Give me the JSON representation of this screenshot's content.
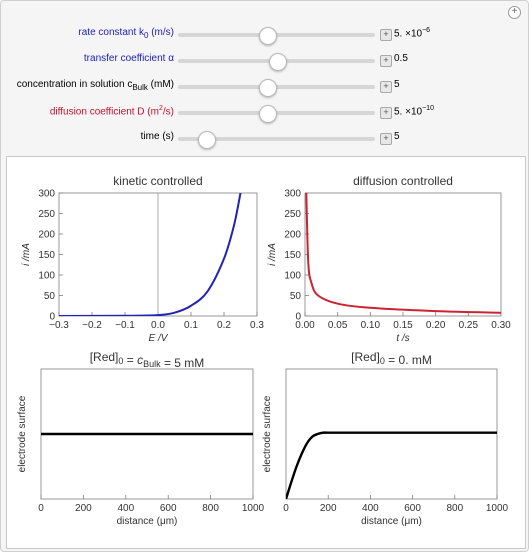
{
  "controls": [
    {
      "id": "rate-constant",
      "label_main": "rate constant k",
      "label_sub": "0",
      "label_tail": " (m/s)",
      "color": "blue",
      "value_base": "5. ×10",
      "value_exp": "−6",
      "thumb": 0.45
    },
    {
      "id": "transfer-coefficient",
      "label_main": "transfer coefficient α",
      "label_sub": "",
      "label_tail": "",
      "color": "blue",
      "value_base": "0.5",
      "value_exp": "",
      "thumb": 0.5
    },
    {
      "id": "concentration",
      "label_main": "concentration in solution c",
      "label_sub": "Bulk",
      "label_tail": " (mM)",
      "color": "black",
      "value_base": "5",
      "value_exp": "",
      "thumb": 0.45
    },
    {
      "id": "diffusion-coefficient",
      "label_main": "diffusion coefficient D (m",
      "label_sup": "2",
      "label_tail": "/s)",
      "color": "red",
      "value_base": "5. ×10",
      "value_exp": "−10",
      "thumb": 0.45
    },
    {
      "id": "time",
      "label_main": "time (s)",
      "label_sub": "",
      "label_tail": "",
      "color": "black",
      "value_base": "5",
      "value_exp": "",
      "thumb": 0.14
    }
  ],
  "colors": {
    "kinetic": "#2222bb",
    "diffusion": "#cc2233",
    "profile": "#000000",
    "axis": "#7f7f7f"
  },
  "chart_data": [
    {
      "type": "line",
      "title": "kinetic controlled",
      "xlabel": "E /V",
      "ylabel": "i /mA",
      "xlim": [
        -0.3,
        0.3
      ],
      "ylim": [
        0,
        300
      ],
      "xticks": [
        "−0.3",
        "−0.2",
        "−0.1",
        "0.0",
        "0.1",
        "0.2",
        "0.3"
      ],
      "yticks": [
        "0",
        "50",
        "100",
        "150",
        "200",
        "250",
        "300"
      ],
      "series": [
        {
          "x": [
            -0.3,
            -0.1,
            0.0,
            0.05,
            0.1,
            0.15,
            0.2,
            0.23,
            0.25
          ],
          "y": [
            0,
            0.5,
            2,
            8,
            25,
            60,
            140,
            220,
            300
          ]
        }
      ]
    },
    {
      "type": "line",
      "title": "diffusion controlled",
      "xlabel": "t /s",
      "ylabel": "i /mA",
      "xlim": [
        0,
        0.3
      ],
      "ylim": [
        0,
        300
      ],
      "xticks": [
        "0.00",
        "0.05",
        "0.10",
        "0.15",
        "0.20",
        "0.25",
        "0.30"
      ],
      "yticks": [
        "0",
        "50",
        "100",
        "150",
        "200",
        "250",
        "300"
      ],
      "series": [
        {
          "x": [
            0.002,
            0.005,
            0.01,
            0.02,
            0.05,
            0.1,
            0.2,
            0.3
          ],
          "y": [
            300,
            130,
            80,
            50,
            30,
            20,
            12,
            8
          ]
        }
      ]
    },
    {
      "type": "line",
      "title_pre": "[Red]",
      "title_sub0": "0",
      "title_mid": " = ",
      "title_c": "c",
      "title_sub1": "Bulk",
      "title_post": " = 5 mM",
      "xlabel": "distance (μm)",
      "ylabel": "electrode surface",
      "xlim": [
        0,
        1000
      ],
      "ylim": [
        0,
        1
      ],
      "xticks": [
        "0",
        "200",
        "400",
        "600",
        "800",
        "1000"
      ],
      "series": [
        {
          "x": [
            0,
            1000
          ],
          "y": [
            0.5,
            0.5
          ]
        }
      ]
    },
    {
      "type": "line",
      "title_pre": "[Red]",
      "title_sub0": "0",
      "title_post": " = 0. mM",
      "xlabel": "distance (μm)",
      "ylabel": "electrode surface",
      "xlim": [
        0,
        1000
      ],
      "ylim": [
        0,
        1
      ],
      "xticks": [
        "0",
        "200",
        "400",
        "600",
        "800",
        "1000"
      ],
      "series": [
        {
          "x": [
            0,
            25,
            50,
            75,
            100,
            125,
            150,
            175,
            200,
            300,
            1000
          ],
          "y": [
            0,
            0.13,
            0.25,
            0.35,
            0.43,
            0.48,
            0.5,
            0.51,
            0.51,
            0.51,
            0.51
          ]
        }
      ]
    }
  ]
}
